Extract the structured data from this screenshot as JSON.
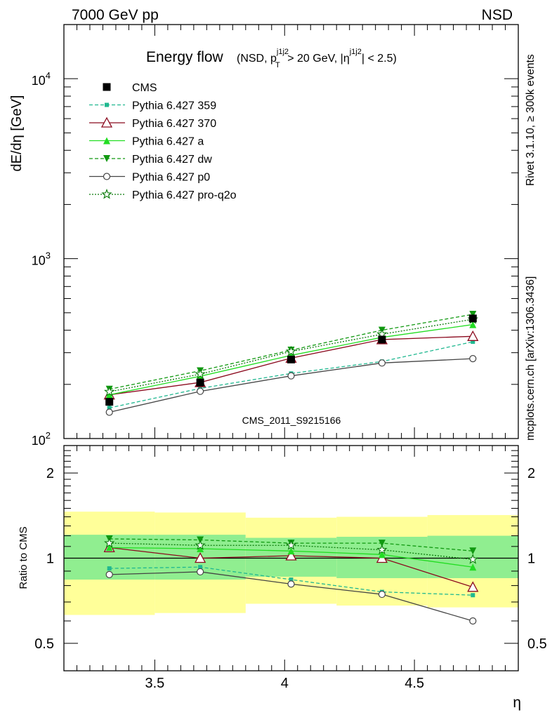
{
  "header": {
    "left": "7000 GeV pp",
    "right": "NSD"
  },
  "side": {
    "rivet": "Rivet 3.1.10, ≥ 300k events",
    "mcplots": "mcplots.cern.ch [arXiv:1306.3436]"
  },
  "colors": {
    "cms": "#000000",
    "p359": "#20b890",
    "p370": "#8b0a1e",
    "pa": "#22dd22",
    "pdw": "#119911",
    "pp0": "#444444",
    "pq2o": "#0a7a0a",
    "band_inner": "#90ee90",
    "band_outer": "#ffff99",
    "watermark": "#999999"
  },
  "chart_data": [
    {
      "type": "line",
      "panel": "main",
      "title": "Energy flow",
      "subtitle": "(NSD, p_T^{j1j2} > 20 GeV, |η^{j1j2}| < 2.5)",
      "subtitle_parts": {
        "open": "(NSD, p",
        "sup1": "j1j2",
        "sub1": "T",
        "mid": " > 20 GeV, |η",
        "sup2": "j1j2",
        "close": "| < 2.5)"
      },
      "watermark": "CMS_2011_S9215166",
      "ylabel": "dE/dη [GeV]",
      "yscale": "log",
      "ylim": [
        100,
        20000
      ],
      "xlim": [
        3.15,
        4.9
      ],
      "ytick_labels": [
        {
          "value": 100,
          "base": "10",
          "exp": "2"
        },
        {
          "value": 1000,
          "base": "10",
          "exp": "3"
        },
        {
          "value": 10000,
          "base": "10",
          "exp": "4"
        }
      ],
      "legend_position": "top-left",
      "x": [
        3.325,
        3.675,
        4.025,
        4.375,
        4.725
      ],
      "series": [
        {
          "key": "cms",
          "name": "CMS",
          "values": [
            160,
            205,
            275,
            355,
            465
          ],
          "errors": [
            8,
            10,
            12,
            15,
            22
          ],
          "marker": "square-filled",
          "line": "none"
        },
        {
          "key": "p359",
          "name": "Pythia 6.427 359",
          "values": [
            148,
            190,
            230,
            268,
            345
          ],
          "marker": "square-small",
          "line": "dashed"
        },
        {
          "key": "p370",
          "name": "Pythia 6.427 370",
          "values": [
            175,
            205,
            280,
            355,
            370
          ],
          "marker": "triangle-open",
          "line": "solid"
        },
        {
          "key": "pa",
          "name": "Pythia 6.427 a",
          "values": [
            175,
            222,
            290,
            365,
            430
          ],
          "marker": "triangle-filled",
          "line": "solid"
        },
        {
          "key": "pdw",
          "name": "Pythia 6.427 dw",
          "values": [
            188,
            238,
            310,
            400,
            490
          ],
          "marker": "triangle-down-filled",
          "line": "dashed"
        },
        {
          "key": "pp0",
          "name": "Pythia 6.427 p0",
          "values": [
            140,
            183,
            223,
            263,
            278
          ],
          "marker": "circle-open",
          "line": "solid"
        },
        {
          "key": "pq2o",
          "name": "Pythia 6.427 pro-q2o",
          "values": [
            182,
            228,
            305,
            380,
            460
          ],
          "marker": "star-open",
          "line": "dotted"
        }
      ]
    },
    {
      "type": "line",
      "panel": "ratio",
      "ylabel": "Ratio to CMS",
      "xlabel": "η",
      "yscale": "log",
      "ylim": [
        0.4,
        2.5
      ],
      "xlim": [
        3.15,
        4.9
      ],
      "xtick_labels": [
        {
          "value": 3.5,
          "label": "3.5"
        },
        {
          "value": 4.0,
          "label": "4"
        },
        {
          "value": 4.5,
          "label": "4.5"
        }
      ],
      "ytick_labels": [
        {
          "value": 0.5,
          "label": "0.5"
        },
        {
          "value": 1,
          "label": "1"
        },
        {
          "value": 2,
          "label": "2"
        }
      ],
      "x": [
        3.325,
        3.675,
        4.025,
        4.375,
        4.725
      ],
      "bands": {
        "edges": [
          3.15,
          3.5,
          3.85,
          4.2,
          4.55,
          4.9
        ],
        "inner": [
          [
            0.84,
            1.21
          ],
          [
            0.84,
            1.21
          ],
          [
            0.86,
            1.18
          ],
          [
            0.85,
            1.19
          ],
          [
            0.85,
            1.2
          ]
        ],
        "outer": [
          [
            0.63,
            1.46
          ],
          [
            0.64,
            1.45
          ],
          [
            0.69,
            1.39
          ],
          [
            0.68,
            1.4
          ],
          [
            0.67,
            1.42
          ]
        ]
      },
      "series": [
        {
          "key": "p359",
          "values": [
            0.92,
            0.93,
            0.84,
            0.76,
            0.74
          ]
        },
        {
          "key": "p370",
          "values": [
            1.09,
            1.0,
            1.02,
            1.0,
            0.79
          ]
        },
        {
          "key": "pa",
          "values": [
            1.09,
            1.08,
            1.06,
            1.03,
            0.93
          ]
        },
        {
          "key": "pdw",
          "values": [
            1.17,
            1.16,
            1.13,
            1.13,
            1.06
          ]
        },
        {
          "key": "pp0",
          "values": [
            0.875,
            0.895,
            0.81,
            0.745,
            0.6
          ]
        },
        {
          "key": "pq2o",
          "values": [
            1.13,
            1.11,
            1.11,
            1.07,
            0.99
          ]
        }
      ]
    }
  ]
}
